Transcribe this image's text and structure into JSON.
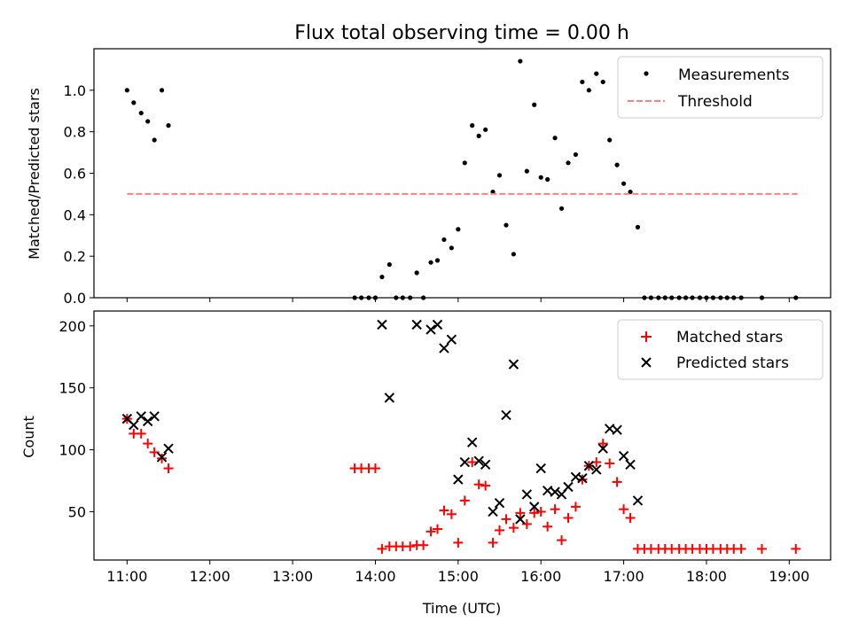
{
  "title": "Flux total observing time = 0.00 h",
  "colors": {
    "measurements": "#000000",
    "threshold": "#ff7f7f",
    "matched": "#ff0000",
    "predicted": "#000000"
  },
  "chart_data": [
    {
      "type": "scatter",
      "ylabel": "Matched/Predicted stars",
      "xlim": [
        10.6,
        19.5
      ],
      "ylim": [
        0,
        1.2
      ],
      "yticks": [
        0.0,
        0.2,
        0.4,
        0.6,
        0.8,
        1.0
      ],
      "ytick_labels": [
        "0.0",
        "0.2",
        "0.4",
        "0.6",
        "0.8",
        "1.0"
      ],
      "legend_position": "top-right",
      "series": [
        {
          "name": "Measurements",
          "marker": "dot",
          "x": [
            11.0,
            11.08,
            11.17,
            11.25,
            11.33,
            11.42,
            11.5,
            13.75,
            13.83,
            13.92,
            14.0,
            14.08,
            14.17,
            14.25,
            14.33,
            14.42,
            14.5,
            14.58,
            14.67,
            14.75,
            14.83,
            14.92,
            15.0,
            15.08,
            15.17,
            15.25,
            15.33,
            15.42,
            15.5,
            15.58,
            15.67,
            15.75,
            15.83,
            15.92,
            16.0,
            16.08,
            16.17,
            16.25,
            16.33,
            16.42,
            16.5,
            16.58,
            16.67,
            16.75,
            16.83,
            16.92,
            17.0,
            17.08,
            17.17,
            17.25,
            17.33,
            17.42,
            17.5,
            17.58,
            17.67,
            17.75,
            17.83,
            17.92,
            18.0,
            18.08,
            18.17,
            18.25,
            18.33,
            18.42,
            18.67,
            19.08
          ],
          "y": [
            1.0,
            0.94,
            0.89,
            0.85,
            0.76,
            1.0,
            0.83,
            0.0,
            0.0,
            0.0,
            0.0,
            0.1,
            0.16,
            0.0,
            0.0,
            0.0,
            0.12,
            0.0,
            0.17,
            0.18,
            0.28,
            0.24,
            0.33,
            0.65,
            0.83,
            0.78,
            0.81,
            0.51,
            0.59,
            0.35,
            0.21,
            1.14,
            0.61,
            0.93,
            0.58,
            0.57,
            0.77,
            0.43,
            0.65,
            0.69,
            1.04,
            1.0,
            1.08,
            1.04,
            0.76,
            0.64,
            0.55,
            0.51,
            0.34,
            0.0,
            0.0,
            0.0,
            0.0,
            0.0,
            0.0,
            0.0,
            0.0,
            0.0,
            0.0,
            0.0,
            0.0,
            0.0,
            0.0,
            0.0,
            0.0,
            0.0
          ]
        },
        {
          "name": "Threshold",
          "marker": "dashed-line",
          "x": [
            11.0,
            19.1
          ],
          "y": [
            0.5,
            0.5
          ]
        }
      ]
    },
    {
      "type": "scatter",
      "xlabel": "Time (UTC)",
      "ylabel": "Count",
      "xlim": [
        10.6,
        19.5
      ],
      "ylim": [
        11,
        212
      ],
      "xticks": [
        11,
        12,
        13,
        14,
        15,
        16,
        17,
        18,
        19
      ],
      "xtick_labels": [
        "11:00",
        "12:00",
        "13:00",
        "14:00",
        "15:00",
        "16:00",
        "17:00",
        "18:00",
        "19:00"
      ],
      "yticks": [
        50,
        100,
        150,
        200
      ],
      "ytick_labels": [
        "50",
        "100",
        "150",
        "200"
      ],
      "legend_position": "top-right",
      "series": [
        {
          "name": "Matched stars",
          "marker": "plus",
          "x": [
            11.0,
            11.08,
            11.17,
            11.25,
            11.33,
            11.42,
            11.5,
            13.75,
            13.83,
            13.92,
            14.0,
            14.08,
            14.17,
            14.25,
            14.33,
            14.42,
            14.5,
            14.58,
            14.67,
            14.75,
            14.83,
            14.92,
            15.0,
            15.08,
            15.17,
            15.25,
            15.33,
            15.42,
            15.5,
            15.58,
            15.67,
            15.75,
            15.83,
            15.92,
            16.0,
            16.08,
            16.17,
            16.25,
            16.33,
            16.42,
            16.5,
            16.58,
            16.67,
            16.75,
            16.83,
            16.92,
            17.0,
            17.08,
            17.17,
            17.25,
            17.33,
            17.42,
            17.5,
            17.58,
            17.67,
            17.75,
            17.83,
            17.92,
            18.0,
            18.08,
            18.17,
            18.25,
            18.33,
            18.42,
            18.67,
            19.08
          ],
          "y": [
            125,
            113,
            113,
            105,
            98,
            93,
            85,
            85,
            85,
            85,
            85,
            20,
            22,
            22,
            22,
            22,
            23,
            23,
            34,
            36,
            51,
            48,
            25,
            59,
            90,
            72,
            71,
            25,
            35,
            44,
            37,
            49,
            40,
            49,
            50,
            38,
            52,
            27,
            45,
            54,
            76,
            87,
            90,
            105,
            89,
            74,
            52,
            45,
            20,
            20,
            20,
            20,
            20,
            20,
            20,
            20,
            20,
            20,
            20,
            20,
            20,
            20,
            20,
            20,
            20,
            20
          ]
        },
        {
          "name": "Predicted stars",
          "marker": "x",
          "x": [
            11.0,
            11.08,
            11.17,
            11.25,
            11.33,
            11.42,
            11.5,
            14.08,
            14.17,
            14.5,
            14.67,
            14.75,
            14.83,
            14.92,
            15.0,
            15.08,
            15.17,
            15.25,
            15.33,
            15.42,
            15.5,
            15.58,
            15.67,
            15.75,
            15.83,
            15.92,
            16.0,
            16.08,
            16.17,
            16.25,
            16.33,
            16.42,
            16.5,
            16.58,
            16.67,
            16.75,
            16.83,
            16.92,
            17.0,
            17.08,
            17.17
          ],
          "y": [
            125,
            120,
            127,
            123,
            127,
            94,
            101,
            201,
            142,
            201,
            197,
            201,
            182,
            189,
            76,
            90,
            106,
            91,
            88,
            50,
            57,
            128,
            169,
            44,
            64,
            54,
            85,
            67,
            66,
            64,
            70,
            78,
            77,
            87,
            84,
            101,
            117,
            116,
            95,
            88,
            59
          ]
        }
      ]
    }
  ]
}
